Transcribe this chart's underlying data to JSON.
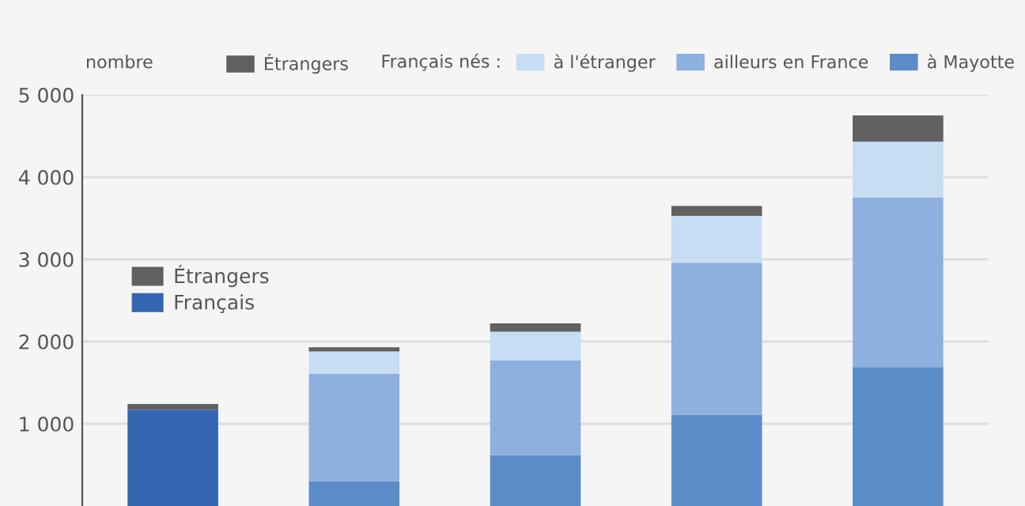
{
  "chart_data": {
    "type": "bar",
    "stacked": true,
    "ylabel": "nombre",
    "legend_title": "Français nés :",
    "categories": [
      null,
      null,
      null,
      null,
      null
    ],
    "series": [
      {
        "name": "à Mayotte",
        "color": "#5b8cc8",
        "values": [
          null,
          300,
          620,
          1110,
          1690
        ]
      },
      {
        "name": "Français",
        "color": "#3366b0",
        "values": [
          1170,
          null,
          null,
          null,
          null
        ]
      },
      {
        "name": "ailleurs en France",
        "color": "#8eb0de",
        "values": [
          null,
          1310,
          1150,
          1850,
          2060
        ]
      },
      {
        "name": "à l'étranger",
        "color": "#c6ddf3",
        "values": [
          null,
          270,
          350,
          570,
          680
        ]
      },
      {
        "name": "Étrangers",
        "color": "#616161",
        "values": [
          70,
          50,
          100,
          120,
          320
        ]
      }
    ],
    "ylim": [
      0,
      5000
    ],
    "yticks": [
      {
        "value": 1000,
        "label": "1 000"
      },
      {
        "value": 2000,
        "label": "2 000"
      },
      {
        "value": 3000,
        "label": "3 000"
      },
      {
        "value": 4000,
        "label": "4 000"
      },
      {
        "value": 5000,
        "label": "5 000"
      }
    ],
    "grid": "y",
    "legend": "top",
    "tick_labels": "y"
  }
}
